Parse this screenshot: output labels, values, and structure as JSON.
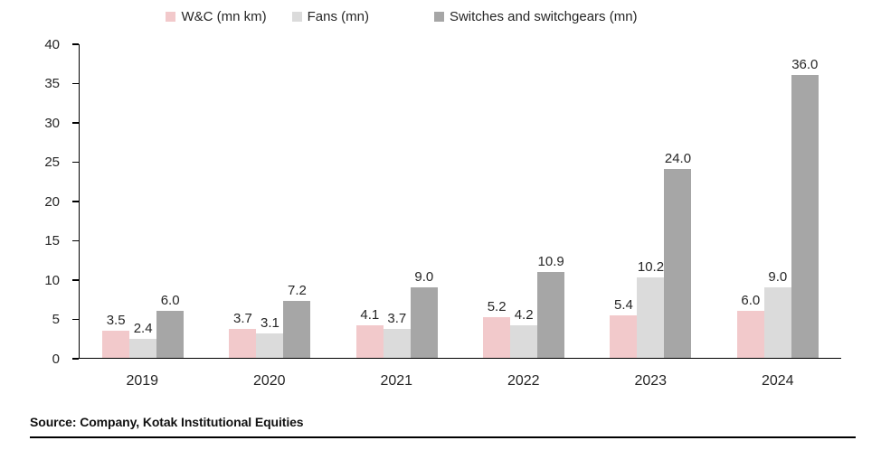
{
  "legend": {
    "items": [
      {
        "label": "W&C (mn km)",
        "color": "#F2C9CB"
      },
      {
        "label": "Fans (mn)",
        "color": "#DBDBDB"
      },
      {
        "label": "Switches and switchgears (mn)",
        "color": "#A6A6A6"
      }
    ]
  },
  "chart_data": {
    "type": "bar",
    "title": "",
    "xlabel": "",
    "ylabel": "",
    "categories": [
      "2019",
      "2020",
      "2021",
      "2022",
      "2023",
      "2024"
    ],
    "series": [
      {
        "name": "W&C (mn km)",
        "color": "#F2C9CB",
        "values": [
          3.5,
          3.7,
          4.1,
          5.2,
          5.4,
          6.0
        ]
      },
      {
        "name": "Fans (mn)",
        "color": "#DBDBDB",
        "values": [
          2.4,
          3.1,
          3.7,
          4.2,
          10.2,
          9.0
        ]
      },
      {
        "name": "Switches and switchgears (mn)",
        "color": "#A6A6A6",
        "values": [
          6.0,
          7.2,
          9.0,
          10.9,
          24.0,
          36.0
        ]
      }
    ],
    "ylim": [
      0,
      40
    ],
    "yticks": [
      0,
      5,
      10,
      15,
      20,
      25,
      30,
      35,
      40
    ],
    "grid": false,
    "legend_position": "top",
    "data_labels": true,
    "data_label_decimals": 1
  },
  "footer": {
    "source": "Source: Company, Kotak Institutional Equities"
  }
}
